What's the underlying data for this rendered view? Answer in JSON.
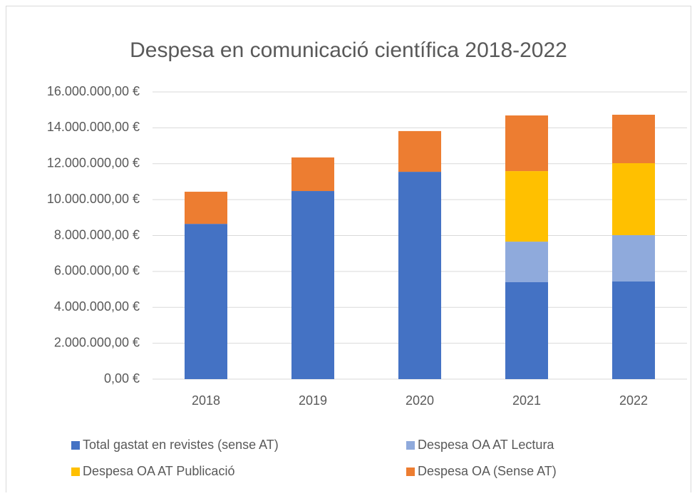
{
  "chart_data": {
    "type": "stacked_bar",
    "title": "Despesa en comunicació científica 2018-2022",
    "categories": [
      "2018",
      "2019",
      "2020",
      "2021",
      "2022"
    ],
    "series": [
      {
        "name": "Total gastat en revistes (sense AT)",
        "color": "#4472c4",
        "values": [
          8650000,
          10480000,
          11550000,
          5400000,
          5440000
        ]
      },
      {
        "name": "Despesa OA AT Lectura",
        "color": "#8faadc",
        "values": [
          null,
          null,
          null,
          2260000,
          2580000
        ]
      },
      {
        "name": "Despesa OA AT Publicació",
        "color": "#ffc000",
        "values": [
          null,
          null,
          null,
          3930000,
          4010000
        ]
      },
      {
        "name": "Despesa OA (Sense AT)",
        "color": "#ed7d31",
        "values": [
          1790000,
          1870000,
          2270000,
          3100000,
          2700000
        ]
      }
    ],
    "ylim": [
      0,
      16000000
    ],
    "yticks": [
      {
        "value": 0,
        "label": "0,00 €"
      },
      {
        "value": 2000000,
        "label": "2.000.000,00 €"
      },
      {
        "value": 4000000,
        "label": "4.000.000,00 €"
      },
      {
        "value": 6000000,
        "label": "6.000.000,00 €"
      },
      {
        "value": 8000000,
        "label": "8.000.000,00 €"
      },
      {
        "value": 10000000,
        "label": "10.000.000,00 €"
      },
      {
        "value": 12000000,
        "label": "12.000.000,00 €"
      },
      {
        "value": 14000000,
        "label": "14.000.000,00 €"
      },
      {
        "value": 16000000,
        "label": "16.000.000,00 €"
      }
    ],
    "grid": true
  }
}
